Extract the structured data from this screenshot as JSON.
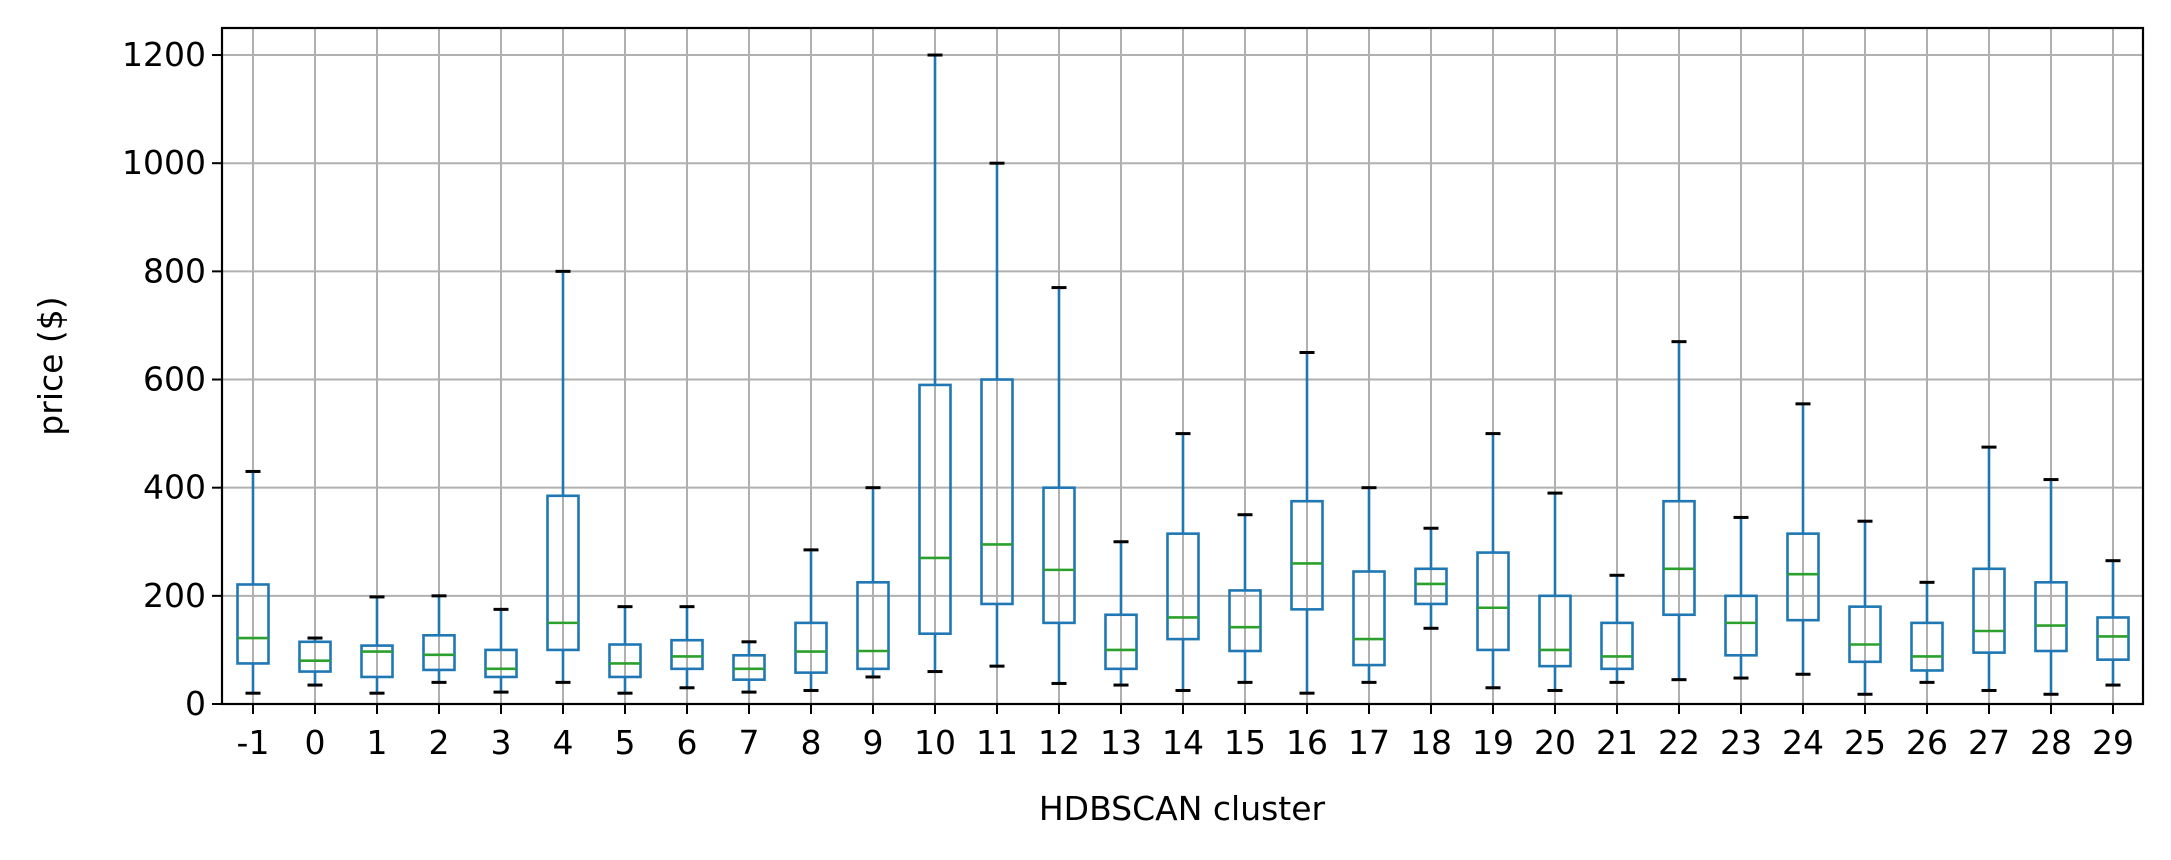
{
  "chart_data": {
    "type": "box",
    "title": "",
    "xlabel": "HDBSCAN cluster",
    "ylabel": "price ($)",
    "ylim": [
      0,
      1250
    ],
    "yticks": [
      0,
      200,
      400,
      600,
      800,
      1000,
      1200
    ],
    "grid": true,
    "colors": {
      "box": "#1f77b4",
      "median": "#2ca02c",
      "grid": "#b0b0b0",
      "axis": "#000000"
    },
    "categories": [
      "-1",
      "0",
      "1",
      "2",
      "3",
      "4",
      "5",
      "6",
      "7",
      "8",
      "9",
      "10",
      "11",
      "12",
      "13",
      "14",
      "15",
      "16",
      "17",
      "18",
      "19",
      "20",
      "21",
      "22",
      "23",
      "24",
      "25",
      "26",
      "27",
      "28",
      "29"
    ],
    "boxes": [
      {
        "whisker_low": 20,
        "q1": 75,
        "median": 122,
        "q3": 221,
        "whisker_high": 430
      },
      {
        "whisker_low": 35,
        "q1": 60,
        "median": 80,
        "q3": 115,
        "whisker_high": 122
      },
      {
        "whisker_low": 20,
        "q1": 50,
        "median": 97,
        "q3": 108,
        "whisker_high": 198
      },
      {
        "whisker_low": 40,
        "q1": 63,
        "median": 91,
        "q3": 127,
        "whisker_high": 200
      },
      {
        "whisker_low": 22,
        "q1": 50,
        "median": 65,
        "q3": 100,
        "whisker_high": 175
      },
      {
        "whisker_low": 40,
        "q1": 100,
        "median": 150,
        "q3": 385,
        "whisker_high": 800
      },
      {
        "whisker_low": 20,
        "q1": 50,
        "median": 75,
        "q3": 110,
        "whisker_high": 180
      },
      {
        "whisker_low": 30,
        "q1": 65,
        "median": 88,
        "q3": 118,
        "whisker_high": 180
      },
      {
        "whisker_low": 22,
        "q1": 45,
        "median": 65,
        "q3": 90,
        "whisker_high": 115
      },
      {
        "whisker_low": 25,
        "q1": 58,
        "median": 97,
        "q3": 150,
        "whisker_high": 285
      },
      {
        "whisker_low": 50,
        "q1": 65,
        "median": 98,
        "q3": 225,
        "whisker_high": 400
      },
      {
        "whisker_low": 60,
        "q1": 130,
        "median": 270,
        "q3": 590,
        "whisker_high": 1200
      },
      {
        "whisker_low": 70,
        "q1": 185,
        "median": 295,
        "q3": 600,
        "whisker_high": 1000
      },
      {
        "whisker_low": 38,
        "q1": 150,
        "median": 248,
        "q3": 400,
        "whisker_high": 770
      },
      {
        "whisker_low": 35,
        "q1": 65,
        "median": 100,
        "q3": 165,
        "whisker_high": 300
      },
      {
        "whisker_low": 25,
        "q1": 120,
        "median": 160,
        "q3": 315,
        "whisker_high": 500
      },
      {
        "whisker_low": 40,
        "q1": 98,
        "median": 142,
        "q3": 210,
        "whisker_high": 350
      },
      {
        "whisker_low": 20,
        "q1": 175,
        "median": 260,
        "q3": 375,
        "whisker_high": 650
      },
      {
        "whisker_low": 40,
        "q1": 72,
        "median": 120,
        "q3": 245,
        "whisker_high": 400
      },
      {
        "whisker_low": 140,
        "q1": 185,
        "median": 222,
        "q3": 250,
        "whisker_high": 325
      },
      {
        "whisker_low": 30,
        "q1": 100,
        "median": 178,
        "q3": 280,
        "whisker_high": 500
      },
      {
        "whisker_low": 25,
        "q1": 70,
        "median": 100,
        "q3": 200,
        "whisker_high": 390
      },
      {
        "whisker_low": 40,
        "q1": 65,
        "median": 88,
        "q3": 150,
        "whisker_high": 238
      },
      {
        "whisker_low": 45,
        "q1": 165,
        "median": 250,
        "q3": 375,
        "whisker_high": 670
      },
      {
        "whisker_low": 48,
        "q1": 90,
        "median": 150,
        "q3": 200,
        "whisker_high": 345
      },
      {
        "whisker_low": 55,
        "q1": 155,
        "median": 240,
        "q3": 315,
        "whisker_high": 555
      },
      {
        "whisker_low": 18,
        "q1": 78,
        "median": 110,
        "q3": 180,
        "whisker_high": 338
      },
      {
        "whisker_low": 40,
        "q1": 62,
        "median": 88,
        "q3": 150,
        "whisker_high": 225
      },
      {
        "whisker_low": 25,
        "q1": 95,
        "median": 135,
        "q3": 250,
        "whisker_high": 475
      },
      {
        "whisker_low": 18,
        "q1": 98,
        "median": 145,
        "q3": 225,
        "whisker_high": 415
      },
      {
        "whisker_low": 35,
        "q1": 82,
        "median": 125,
        "q3": 160,
        "whisker_high": 265
      }
    ]
  }
}
